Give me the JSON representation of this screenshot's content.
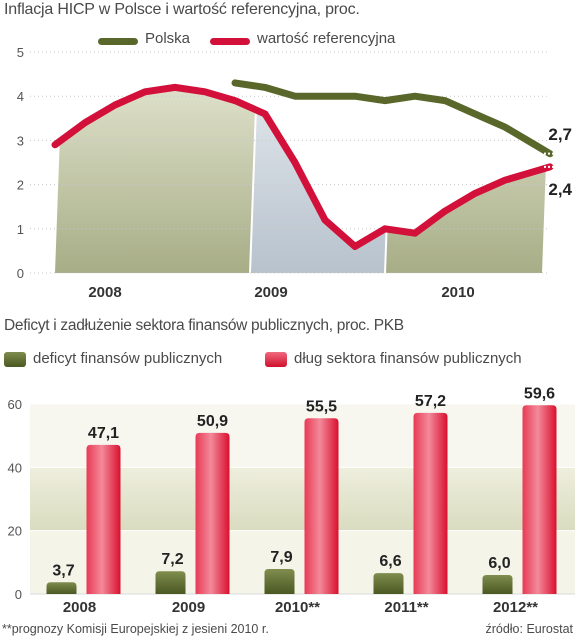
{
  "chart1": {
    "title": "Inflacja HICP w Polsce i wartość referencyjna, proc.",
    "legend": [
      "Polska",
      "wartość referencyjna"
    ],
    "colors": {
      "polska": "#59682a",
      "ref": "#d2103a"
    },
    "yticks": [
      "0",
      "1",
      "2",
      "3",
      "4",
      "5"
    ],
    "years": [
      "2008",
      "2009",
      "2010"
    ],
    "label_polska_end": "2,7",
    "label_ref_end": "2,4"
  },
  "chart2": {
    "title": "Deficyt i zadłużenie sektora finansów publicznych, proc. PKB",
    "legend": [
      "deficyt finansów publicznych",
      "dług sektora finansów publicznych"
    ],
    "colors": {
      "deficit": "#5a6a2c",
      "debt": "#e0203e"
    },
    "yticks": [
      "0",
      "20",
      "40",
      "60"
    ],
    "categories": [
      "2008",
      "2009",
      "2010**",
      "2011**",
      "2012**"
    ],
    "deficit_labels": [
      "3,7",
      "7,2",
      "7,9",
      "6,6",
      "6,0"
    ],
    "debt_labels": [
      "47,1",
      "50,9",
      "55,5",
      "57,2",
      "59,6"
    ]
  },
  "footnote": "**prognozy Komisji Europejskiej z jesieni 2010 r.",
  "source": "źródło: Eurostat",
  "chart_data": [
    {
      "type": "line",
      "title": "Inflacja HICP w Polsce i wartość referencyjna, proc.",
      "xlabel": "",
      "ylabel": "",
      "ylim": [
        0,
        5
      ],
      "x_range": [
        "2008-01",
        "2010-10"
      ],
      "x": [
        "2008-01",
        "2008-03",
        "2008-05",
        "2008-07",
        "2008-09",
        "2008-11",
        "2009-01",
        "2009-03",
        "2009-05",
        "2009-07",
        "2009-09",
        "2009-11",
        "2010-01",
        "2010-03",
        "2010-05",
        "2010-07",
        "2010-09",
        "2010-10"
      ],
      "series": [
        {
          "name": "Polska",
          "values": [
            null,
            null,
            null,
            null,
            null,
            null,
            4.3,
            4.2,
            4.0,
            4.0,
            4.0,
            3.9,
            4.0,
            3.9,
            3.6,
            3.3,
            2.9,
            2.7
          ]
        },
        {
          "name": "wartość referencyjna",
          "values": [
            2.9,
            3.4,
            3.8,
            4.1,
            4.2,
            4.1,
            3.9,
            3.6,
            2.5,
            1.2,
            0.6,
            1.0,
            0.9,
            1.4,
            1.8,
            2.1,
            2.3,
            2.4
          ]
        }
      ],
      "grid": true,
      "legend_position": "top"
    },
    {
      "type": "bar",
      "title": "Deficyt i zadłużenie sektora finansów publicznych, proc. PKB",
      "xlabel": "",
      "ylabel": "",
      "ylim": [
        0,
        60
      ],
      "categories": [
        "2008",
        "2009",
        "2010**",
        "2011**",
        "2012**"
      ],
      "series": [
        {
          "name": "deficyt finansów publicznych",
          "values": [
            3.7,
            7.2,
            7.9,
            6.6,
            6.0
          ]
        },
        {
          "name": "dług sektora finansów publicznych",
          "values": [
            47.1,
            50.9,
            55.5,
            57.2,
            59.6
          ]
        }
      ],
      "grid": true,
      "legend_position": "top"
    }
  ]
}
